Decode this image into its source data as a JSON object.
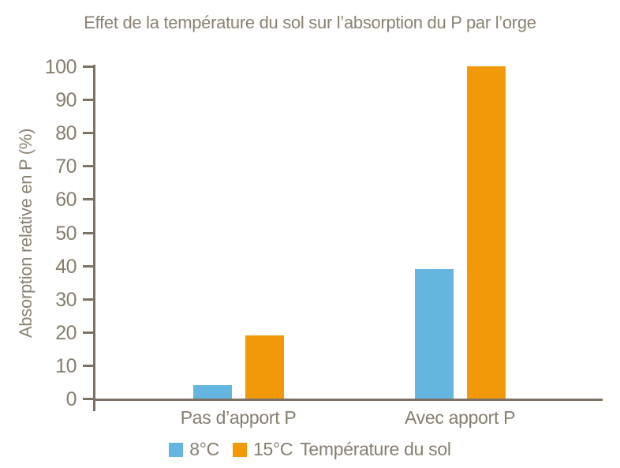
{
  "title": "Effet de la température du sol sur l’absorption du P par l’orge",
  "chart_data": {
    "type": "bar",
    "categories": [
      "Pas d’apport P",
      "Avec apport P"
    ],
    "series": [
      {
        "name": "8°C",
        "color": "#64B6E0",
        "values": [
          4,
          39
        ]
      },
      {
        "name": "15°C",
        "color": "#F2990A",
        "values": [
          19,
          100
        ]
      }
    ],
    "legend_title": "Température du sol",
    "xlabel": "",
    "ylabel": "Absorption relative en P (%)",
    "ylim": [
      0,
      100
    ],
    "ytick_step": 10,
    "grid": false,
    "legend_position": "bottom"
  },
  "colors": {
    "axis": "#7B7265",
    "text": "#867D6F",
    "title": "#8A8173"
  }
}
